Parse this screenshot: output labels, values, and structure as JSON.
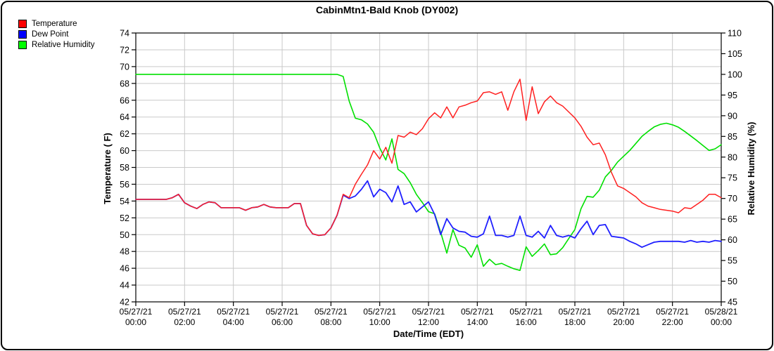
{
  "title": "CabinMtn1-Bald Knob (DY002)",
  "legend": [
    {
      "label": "Temperature",
      "color": "#ff0000"
    },
    {
      "label": "Dew Point",
      "color": "#0000ff"
    },
    {
      "label": "Relative Humidity",
      "color": "#00ff00"
    }
  ],
  "colors": {
    "grid": "#c9c9c9",
    "axis": "#000000",
    "background": "#ffffff"
  },
  "chart_data": {
    "type": "line",
    "title": "CabinMtn1-Bald Knob (DY002)",
    "grid": true,
    "legend_position": "top-left",
    "x_axis": {
      "label": "Date/Time (EDT)",
      "range_hours": [
        0,
        24
      ],
      "tick_interval_hours": 2,
      "ticks": [
        {
          "date": "05/27/21",
          "time": "00:00"
        },
        {
          "date": "05/27/21",
          "time": "02:00"
        },
        {
          "date": "05/27/21",
          "time": "04:00"
        },
        {
          "date": "05/27/21",
          "time": "06:00"
        },
        {
          "date": "05/27/21",
          "time": "08:00"
        },
        {
          "date": "05/27/21",
          "time": "10:00"
        },
        {
          "date": "05/27/21",
          "time": "12:00"
        },
        {
          "date": "05/27/21",
          "time": "14:00"
        },
        {
          "date": "05/27/21",
          "time": "16:00"
        },
        {
          "date": "05/27/21",
          "time": "18:00"
        },
        {
          "date": "05/27/21",
          "time": "20:00"
        },
        {
          "date": "05/27/21",
          "time": "22:00"
        },
        {
          "date": "05/28/21",
          "time": "00:00"
        }
      ]
    },
    "y_left": {
      "label": "Temperature ( F)",
      "min": 42,
      "max": 74,
      "tick_step": 2
    },
    "y_right": {
      "label": "Relative Humidity (%)",
      "min": 45,
      "max": 110,
      "tick_step": 5
    },
    "x_start_hour": 0,
    "x_step_hours": 0.25,
    "series": [
      {
        "name": "Relative Humidity",
        "axis": "right",
        "color": "#00e000",
        "width": 1.6,
        "values": [
          100,
          100,
          100,
          100,
          100,
          100,
          100,
          100,
          100,
          100,
          100,
          100,
          100,
          100,
          100,
          100,
          100,
          100,
          100,
          100,
          100,
          100,
          100,
          100,
          100,
          100,
          100,
          100,
          100,
          100,
          100,
          100,
          100,
          100,
          99.5,
          93.5,
          89.4,
          89.0,
          88.0,
          86.0,
          82.2,
          79.3,
          84.4,
          77.0,
          76.0,
          73.8,
          71.0,
          69.0,
          66.8,
          66.3,
          61.8,
          56.8,
          62.5,
          58.7,
          58.0,
          55.8,
          58.8,
          53.6,
          55.3,
          54.0,
          54.3,
          53.6,
          53.0,
          52.6,
          58.3,
          56.0,
          57.4,
          59.0,
          56.4,
          56.6,
          58.1,
          60.3,
          62.5,
          67.5,
          70.5,
          70.3,
          72.0,
          75.2,
          76.8,
          78.8,
          80.2,
          81.6,
          83.3,
          85.0,
          86.2,
          87.3,
          87.9,
          88.2,
          87.8,
          87.2,
          86.2,
          85.1,
          84.0,
          82.8,
          81.6,
          82.0,
          83.0
        ]
      },
      {
        "name": "Dew Point",
        "axis": "left",
        "color": "#2020ff",
        "width": 1.8,
        "values": [
          54.2,
          54.2,
          54.2,
          54.2,
          54.2,
          54.2,
          54.4,
          54.8,
          53.8,
          53.4,
          53.1,
          53.6,
          53.9,
          53.8,
          53.2,
          53.2,
          53.2,
          53.2,
          52.9,
          53.2,
          53.3,
          53.6,
          53.3,
          53.2,
          53.2,
          53.2,
          53.7,
          53.7,
          51.1,
          50.1,
          49.9,
          50.0,
          50.8,
          52.3,
          54.7,
          54.3,
          54.6,
          55.4,
          56.4,
          54.5,
          55.4,
          55.0,
          53.9,
          55.8,
          53.6,
          53.9,
          52.7,
          53.3,
          53.9,
          52.4,
          50.0,
          51.9,
          50.8,
          50.4,
          50.3,
          49.8,
          49.7,
          50.1,
          52.2,
          49.9,
          49.9,
          49.7,
          49.9,
          52.2,
          49.9,
          49.7,
          50.4,
          49.6,
          51.1,
          49.9,
          49.7,
          49.9,
          49.6,
          50.7,
          51.6,
          50.0,
          51.1,
          51.2,
          49.8,
          49.7,
          49.6,
          49.2,
          48.9,
          48.5,
          48.8,
          49.1,
          49.2,
          49.2,
          49.2,
          49.2,
          49.1,
          49.3,
          49.1,
          49.2,
          49.1,
          49.3,
          49.2
        ]
      },
      {
        "name": "Temperature",
        "axis": "left",
        "color": "#ff2020",
        "width": 1.5,
        "values": [
          54.2,
          54.2,
          54.2,
          54.2,
          54.2,
          54.2,
          54.4,
          54.8,
          53.8,
          53.4,
          53.1,
          53.6,
          53.9,
          53.8,
          53.2,
          53.2,
          53.2,
          53.2,
          52.9,
          53.2,
          53.3,
          53.6,
          53.3,
          53.2,
          53.2,
          53.2,
          53.7,
          53.7,
          51.1,
          50.1,
          49.9,
          50.0,
          50.8,
          52.3,
          54.8,
          54.4,
          56.0,
          57.2,
          58.3,
          60.0,
          59.0,
          60.4,
          58.5,
          61.8,
          61.6,
          62.2,
          61.9,
          62.6,
          63.8,
          64.5,
          63.9,
          65.2,
          63.9,
          65.2,
          65.4,
          65.7,
          65.9,
          66.9,
          67.0,
          66.7,
          67.0,
          64.8,
          67.0,
          68.5,
          63.6,
          67.6,
          64.4,
          65.8,
          66.5,
          65.7,
          65.3,
          64.6,
          63.9,
          62.9,
          61.6,
          60.7,
          60.9,
          59.5,
          57.4,
          55.8,
          55.5,
          55.0,
          54.5,
          53.8,
          53.4,
          53.2,
          53.0,
          52.9,
          52.8,
          52.6,
          53.2,
          53.1,
          53.6,
          54.1,
          54.8,
          54.8,
          54.4
        ]
      }
    ]
  }
}
